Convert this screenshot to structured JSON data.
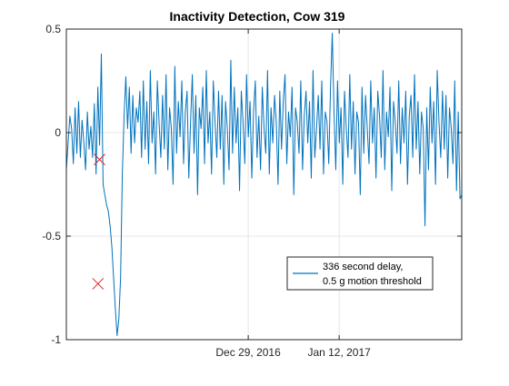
{
  "chart_data": {
    "type": "line",
    "title": "Inactivity Detection, Cow 319",
    "xlabel": "",
    "ylabel": "",
    "x_ticks": [
      "Dec 29, 2016",
      "Jan 12, 2017"
    ],
    "x_tick_positions": [
      2.3,
      3.45
    ],
    "xlim": [
      0,
      5.0
    ],
    "ylim": [
      -1,
      0.5
    ],
    "y_ticks": [
      -1,
      -0.5,
      0,
      0.5
    ],
    "y_tick_labels": [
      "-1",
      "-0.5",
      "0",
      "0.5"
    ],
    "grid": true,
    "legend": {
      "position": "lower-right",
      "entries": [
        "336 second delay,",
        "0.5 g motion threshold"
      ]
    },
    "series": [
      {
        "values": [
          -0.18,
          -0.05,
          0.08,
          0.02,
          -0.15,
          0.12,
          -0.1,
          0.15,
          -0.12,
          0.06,
          -0.05,
          -0.18,
          0.1,
          -0.08,
          0.03,
          -0.12,
          0.14,
          -0.2,
          0.22,
          -0.06,
          0.38,
          -0.25,
          -0.3,
          -0.35,
          -0.38,
          -0.45,
          -0.55,
          -0.7,
          -0.85,
          -0.98,
          -0.9,
          -0.7,
          -0.2,
          0.08,
          0.27,
          0.02,
          0.22,
          -0.1,
          0.18,
          -0.05,
          0.12,
          0.05,
          0.2,
          -0.12,
          0.25,
          -0.08,
          0.15,
          -0.15,
          0.3,
          -0.05,
          0.1,
          -0.2,
          0.25,
          0.05,
          -0.12,
          0.18,
          -0.08,
          0.28,
          -0.18,
          0.12,
          0.02,
          -0.25,
          0.32,
          -0.1,
          0.15,
          -0.02,
          0.25,
          -0.15,
          0.1,
          0.2,
          -0.22,
          0.05,
          0.28,
          -0.1,
          0.18,
          -0.3,
          0.12,
          0.02,
          0.22,
          -0.15,
          0.3,
          -0.05,
          0.1,
          -0.2,
          0.25,
          0.05,
          -0.12,
          0.2,
          -0.08,
          0.18,
          -0.25,
          0.15,
          0.02,
          -0.18,
          0.35,
          -0.1,
          0.22,
          -0.05,
          0.12,
          -0.28,
          0.2,
          0.05,
          -0.15,
          0.28,
          -0.02,
          0.15,
          -0.22,
          0.1,
          0.25,
          -0.12,
          0.08,
          -0.18,
          0.22,
          0.02,
          -0.1,
          0.3,
          -0.2,
          0.12,
          -0.05,
          0.18,
          0.05,
          -0.25,
          0.2,
          -0.08,
          0.15,
          0.28,
          -0.15,
          0.1,
          -0.02,
          0.22,
          -0.3,
          0.12,
          0.05,
          -0.1,
          0.25,
          -0.18,
          0.08,
          0.2,
          -0.05,
          0.15,
          -0.22,
          0.3,
          -0.12,
          0.02,
          0.18,
          -0.08,
          0.25,
          -0.2,
          0.1,
          0.05,
          -0.15,
          0.22,
          0.48,
          0.1,
          -0.18,
          0.25,
          -0.05,
          0.12,
          -0.25,
          0.2,
          0.02,
          -0.12,
          0.28,
          -0.08,
          0.15,
          -0.2,
          0.1,
          0.05,
          -0.3,
          0.22,
          -0.1,
          0.18,
          0.02,
          -0.15,
          0.25,
          -0.05,
          0.12,
          -0.22,
          0.2,
          0.08,
          -0.12,
          0.3,
          -0.18,
          0.1,
          -0.02,
          0.22,
          -0.28,
          0.15,
          0.05,
          -0.1,
          0.25,
          -0.15,
          0.12,
          -0.05,
          0.2,
          -0.25,
          0.08,
          0.18,
          -0.12,
          0.28,
          -0.08,
          0.15,
          -0.2,
          0.1,
          0.02,
          -0.45,
          0.12,
          -0.18,
          0.22,
          -0.05,
          0.15,
          -0.25,
          0.3,
          0.05,
          -0.12,
          0.2,
          -0.08,
          0.18,
          -0.22,
          0.12,
          0.02,
          -0.15,
          0.25,
          -0.28,
          0.1,
          -0.32,
          -0.3
        ]
      }
    ],
    "markers": [
      {
        "x": 0.42,
        "y": -0.13,
        "symbol": "x"
      },
      {
        "x": 0.4,
        "y": -0.73,
        "symbol": "x"
      }
    ],
    "colors": {
      "line": "#0072BD",
      "marker": "#D62728",
      "axis": "#262626",
      "grid": "#DFDFDF"
    }
  }
}
